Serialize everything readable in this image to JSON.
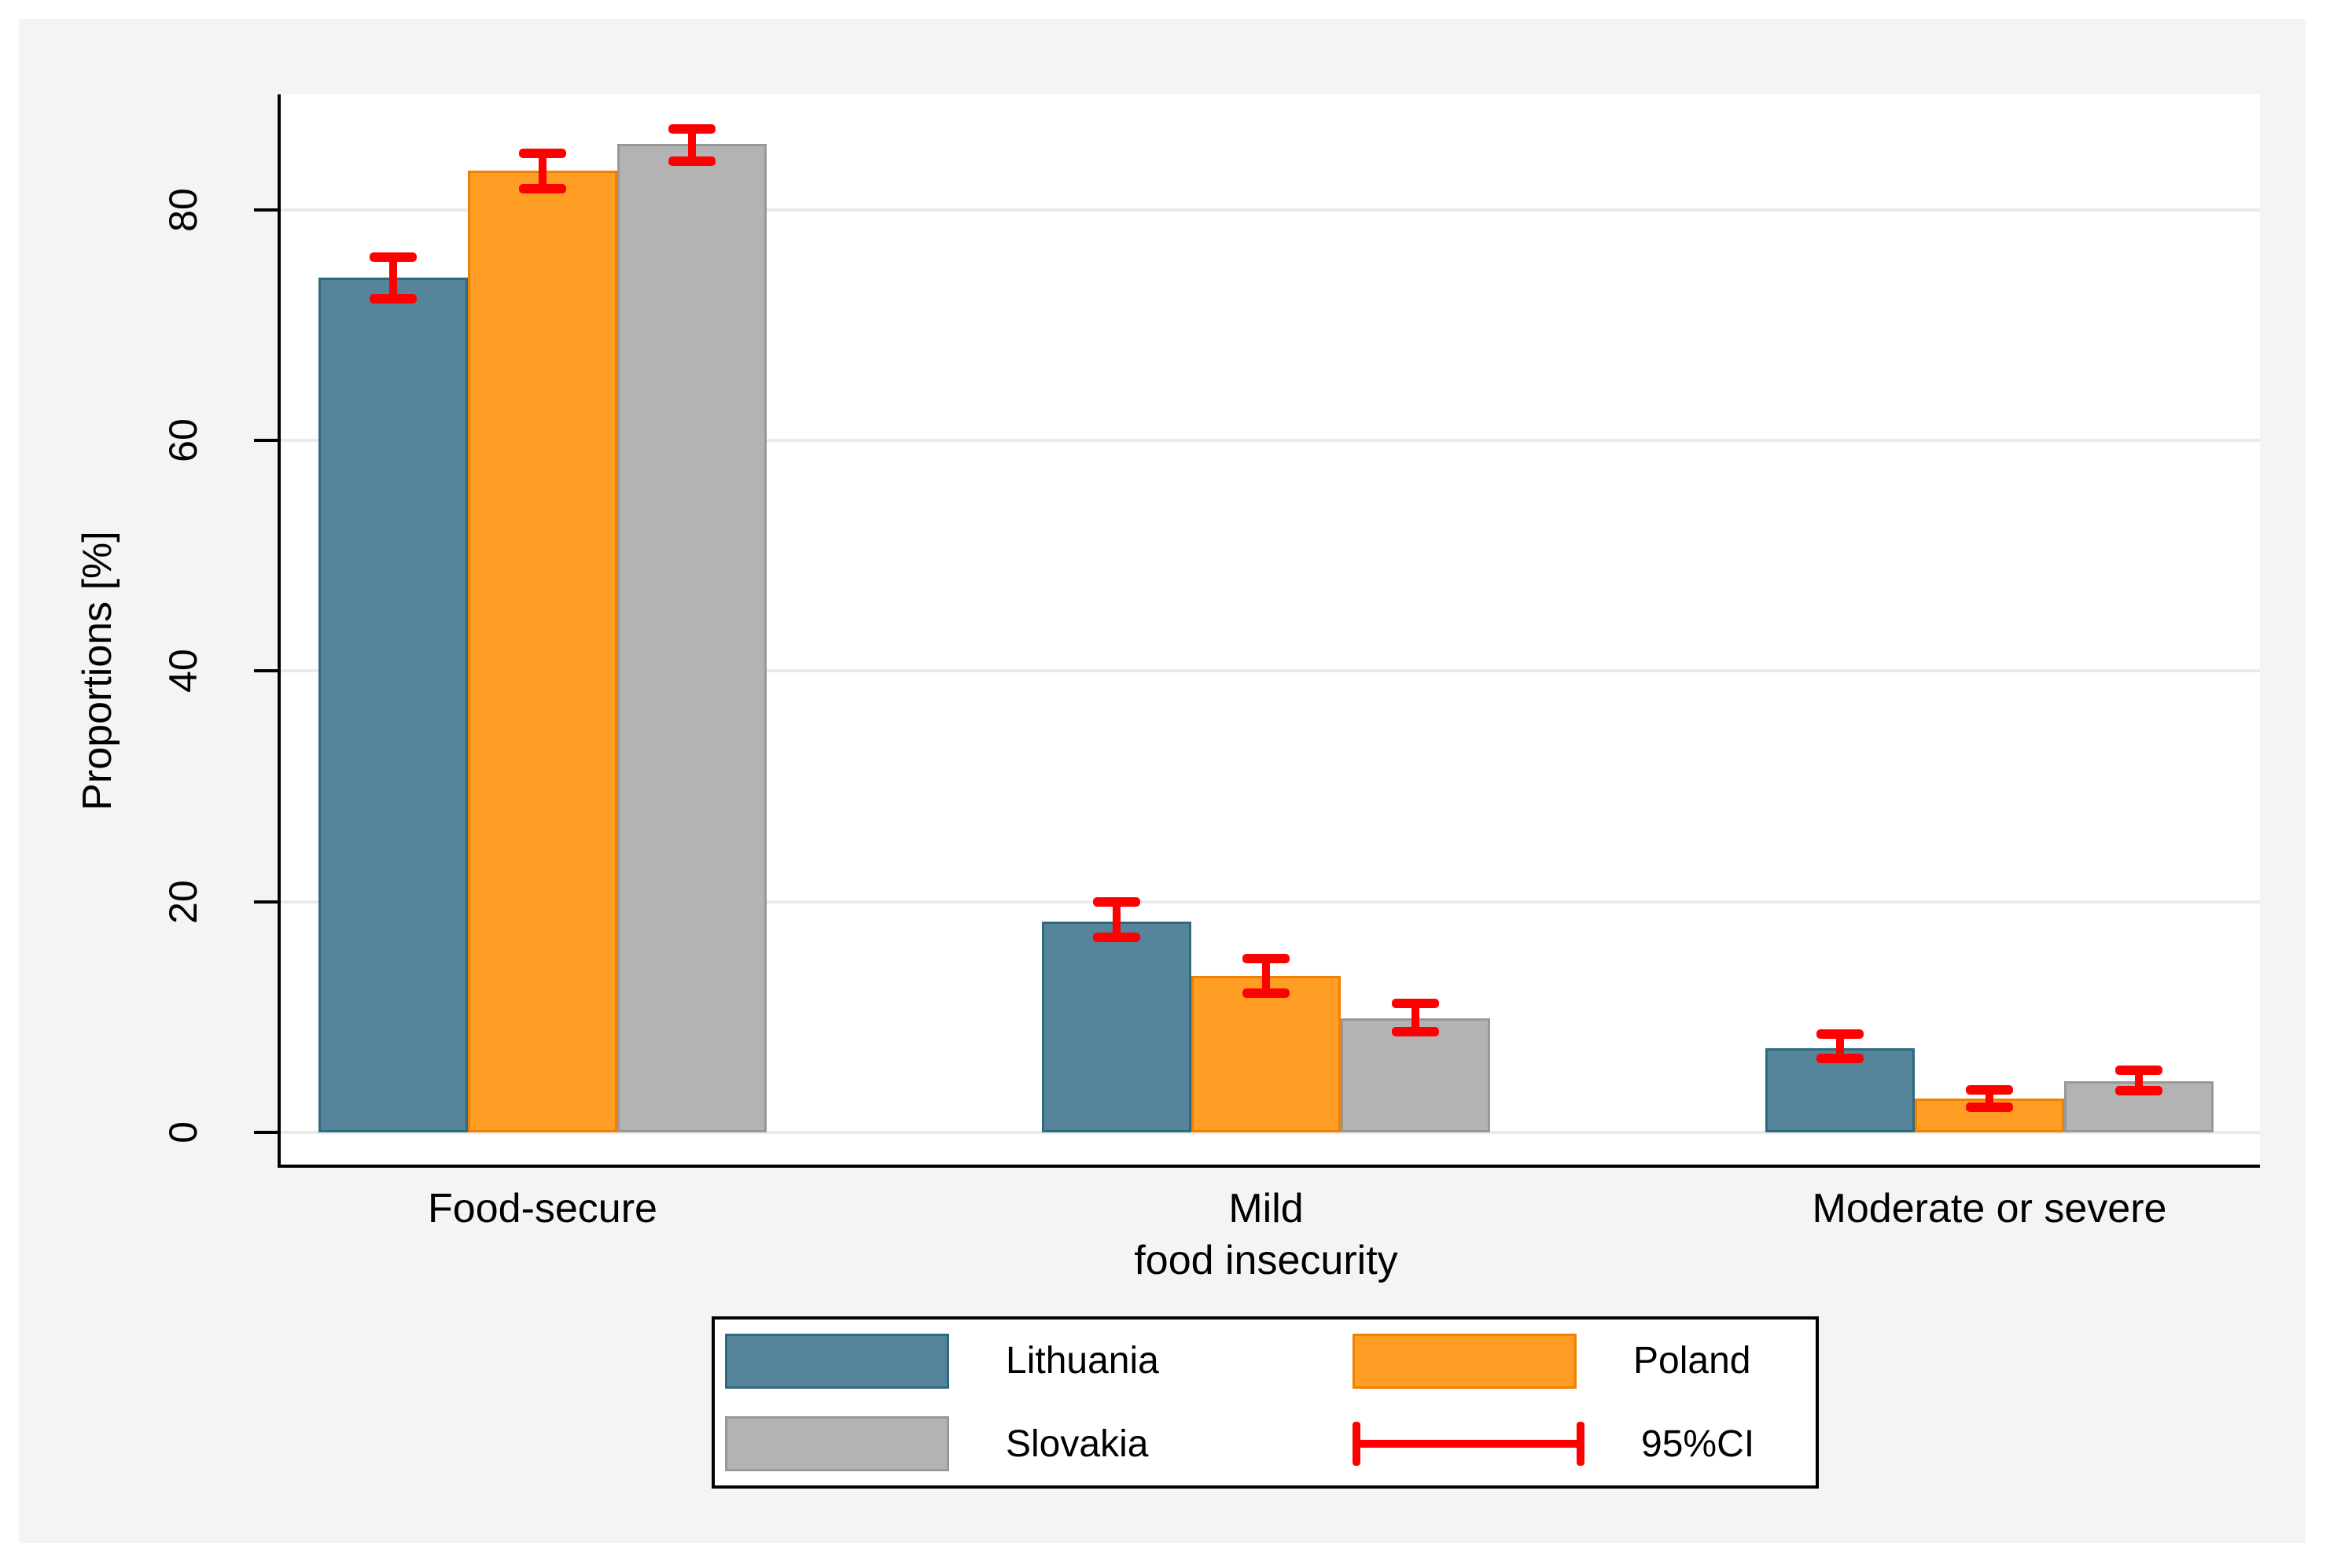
{
  "chart_data": {
    "type": "bar",
    "title": "",
    "xlabel": "",
    "ylabel": "Proportions [%]",
    "ylim": [
      0,
      90
    ],
    "yticks": [
      0,
      20,
      40,
      60,
      80
    ],
    "grid": true,
    "legend_position": "bottom",
    "error_bar_label": "95%CI",
    "error_bar_color": "#fe0000",
    "categories": [
      "Food-secure",
      "Mild food insecurity",
      "Moderate or severe"
    ],
    "category_label_lines": [
      [
        "Food-secure"
      ],
      [
        "Mild",
        "food insecurity"
      ],
      [
        "Moderate or severe"
      ]
    ],
    "series": [
      {
        "name": "Lithuania",
        "color": "#55849b",
        "border_color": "#306a80",
        "values": [
          74.1,
          18.3,
          7.3
        ],
        "ci_low": [
          72.3,
          16.9,
          6.4
        ],
        "ci_high": [
          75.9,
          20.0,
          8.5
        ]
      },
      {
        "name": "Poland",
        "color": "#ff9d24",
        "border_color": "#f08000",
        "values": [
          83.4,
          13.6,
          2.9
        ],
        "ci_low": [
          81.8,
          12.1,
          2.2
        ],
        "ci_high": [
          84.9,
          15.1,
          3.7
        ]
      },
      {
        "name": "Slovakia",
        "color": "#b3b3b3",
        "border_color": "#989898",
        "values": [
          85.7,
          9.9,
          4.4
        ],
        "ci_low": [
          84.2,
          8.7,
          3.6
        ],
        "ci_high": [
          87.0,
          11.2,
          5.4
        ]
      }
    ],
    "legend_items": [
      "Lithuania",
      "Poland",
      "Slovakia",
      "95%CI"
    ]
  }
}
